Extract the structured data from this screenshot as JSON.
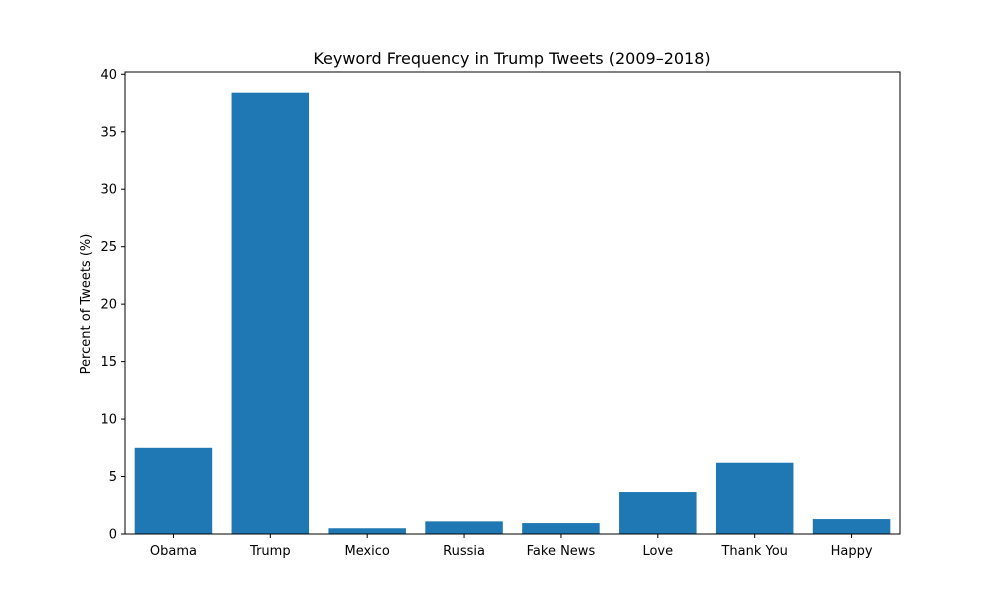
{
  "chart_data": {
    "type": "bar",
    "title": "Keyword Frequency in Trump Tweets (2009–2018)",
    "xlabel": "",
    "ylabel": "Percent of Tweets (%)",
    "categories": [
      "Obama",
      "Trump",
      "Mexico",
      "Russia",
      "Fake News",
      "Love",
      "Thank You",
      "Happy"
    ],
    "values": [
      7.5,
      38.4,
      0.5,
      1.1,
      0.95,
      3.65,
      6.2,
      1.3
    ],
    "ylim": [
      0,
      40.2
    ],
    "yticks": [
      0,
      5,
      10,
      15,
      20,
      25,
      30,
      35,
      40
    ],
    "bar_color": "#1f77b4",
    "grid": false,
    "legend": "none"
  }
}
